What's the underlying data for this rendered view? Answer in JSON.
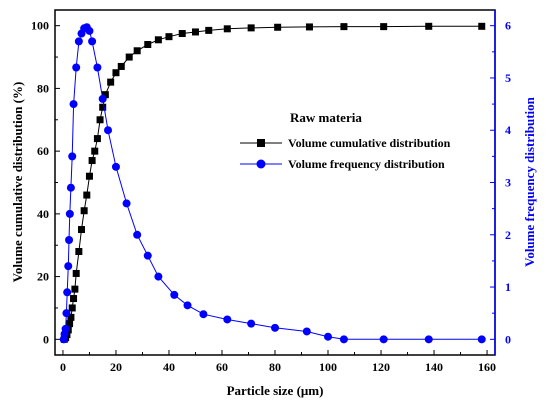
{
  "chart_data": {
    "type": "line",
    "title": "",
    "xlabel": "Particle size (μm)",
    "ylabel_left": "Volume cumulative distribution (%)",
    "ylabel_right": "Volume frequency distribution",
    "xlim": [
      -3,
      163
    ],
    "xticks": [
      "0",
      "20",
      "40",
      "60",
      "80",
      "100",
      "120",
      "140",
      "160"
    ],
    "xtick_values": [
      0,
      20,
      40,
      60,
      80,
      100,
      120,
      140,
      160
    ],
    "ylim_left": [
      -5,
      105
    ],
    "yticks_left": [
      "0",
      "20",
      "40",
      "60",
      "80",
      "100"
    ],
    "ytick_values_left": [
      0,
      20,
      40,
      60,
      80,
      100
    ],
    "ylim_right": [
      -0.3,
      6.3
    ],
    "yticks_right": [
      "0",
      "1",
      "2",
      "3",
      "4",
      "5",
      "6"
    ],
    "ytick_values_right": [
      0,
      1,
      2,
      3,
      4,
      5,
      6
    ],
    "grid": false,
    "legend_title": "Raw materia",
    "legend_position": "center-right",
    "series": [
      {
        "name": "Volume cumulative distribution",
        "axis": "left",
        "marker": "square",
        "color": "#000000",
        "x": [
          0.5,
          1,
          1.5,
          2,
          2.5,
          3,
          3.5,
          4,
          4.5,
          5,
          6,
          7,
          8,
          9,
          10,
          11,
          12,
          13,
          14,
          15,
          16,
          18,
          20,
          22,
          25,
          28,
          32,
          36,
          40,
          45,
          50,
          55,
          62,
          71,
          81,
          93,
          106,
          121,
          138,
          158
        ],
        "y": [
          0,
          0.5,
          1.5,
          3,
          5,
          7,
          10,
          13,
          16,
          21,
          28,
          35,
          41,
          46,
          52,
          57,
          60,
          64,
          70,
          74,
          78,
          82,
          85,
          87,
          90,
          92,
          94,
          95.5,
          96.5,
          97.5,
          98,
          98.5,
          99,
          99.3,
          99.5,
          99.6,
          99.7,
          99.7,
          99.8,
          99.8
        ]
      },
      {
        "name": "Volume frequency distribution",
        "axis": "right",
        "marker": "circle",
        "color": "#0000ff",
        "x": [
          0.3,
          0.6,
          1,
          1.3,
          1.6,
          2,
          2.3,
          2.6,
          3,
          3.5,
          4,
          5,
          6,
          7,
          8,
          9,
          10,
          11,
          13,
          15,
          17,
          20,
          24,
          28,
          32,
          36,
          42,
          47,
          53,
          62,
          71,
          80,
          92,
          100,
          106,
          121,
          138,
          158
        ],
        "y": [
          0,
          0.1,
          0.2,
          0.5,
          0.9,
          1.4,
          1.9,
          2.4,
          2.9,
          3.5,
          4.5,
          5.2,
          5.7,
          5.85,
          5.95,
          5.97,
          5.9,
          5.7,
          5.2,
          4.6,
          4.0,
          3.3,
          2.6,
          2.0,
          1.6,
          1.2,
          0.85,
          0.65,
          0.48,
          0.38,
          0.3,
          0.22,
          0.15,
          0.05,
          0,
          0,
          0,
          0
        ]
      }
    ]
  }
}
